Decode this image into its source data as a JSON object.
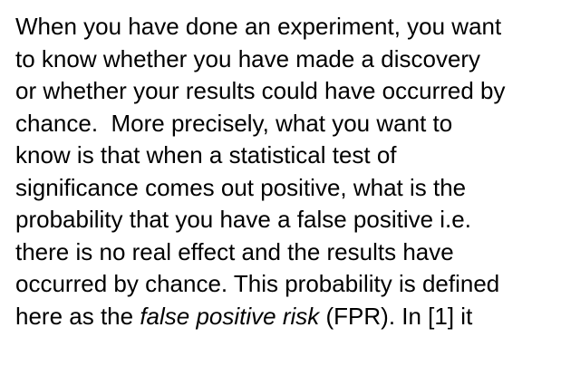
{
  "document": {
    "lines": [
      "When you have done an experiment, you want",
      "to know whether you have made a discovery",
      "or whether your results could have occurred by",
      "chance.  More precisely, what you want to",
      "know is that when a statistical test of",
      "significance comes out positive, what is the",
      "probability that you have a false positive i.e.",
      "there is no real effect and the results have",
      "occurred by chance. This probability is defined"
    ],
    "last_line": {
      "before": "here as the ",
      "emphasis": "false positive risk",
      "after": " (FPR). In [1] it"
    }
  }
}
